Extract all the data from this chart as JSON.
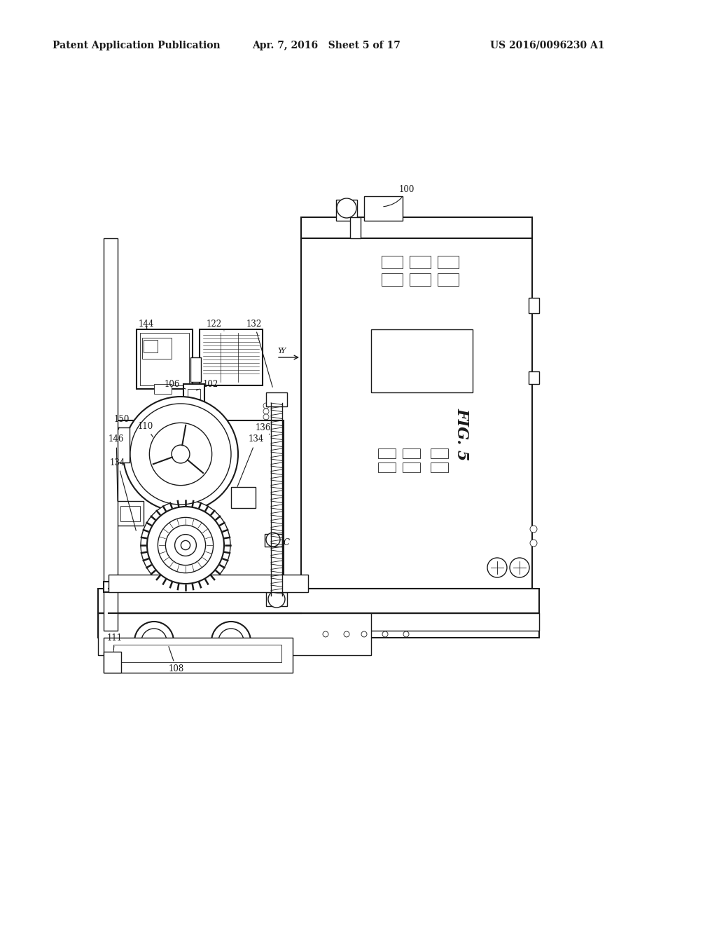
{
  "background_color": "#ffffff",
  "line_color": "#1a1a1a",
  "header_left": "Patent Application Publication",
  "header_center": "Apr. 7, 2016   Sheet 5 of 17",
  "header_right": "US 2016/0096230 A1",
  "fig_label": "FIG. 5",
  "header_fontsize": 10,
  "label_fontsize": 8.5,
  "fig_label_fontsize": 16,
  "lw": 1.0,
  "lw_thick": 1.5,
  "lw_thin": 0.6
}
